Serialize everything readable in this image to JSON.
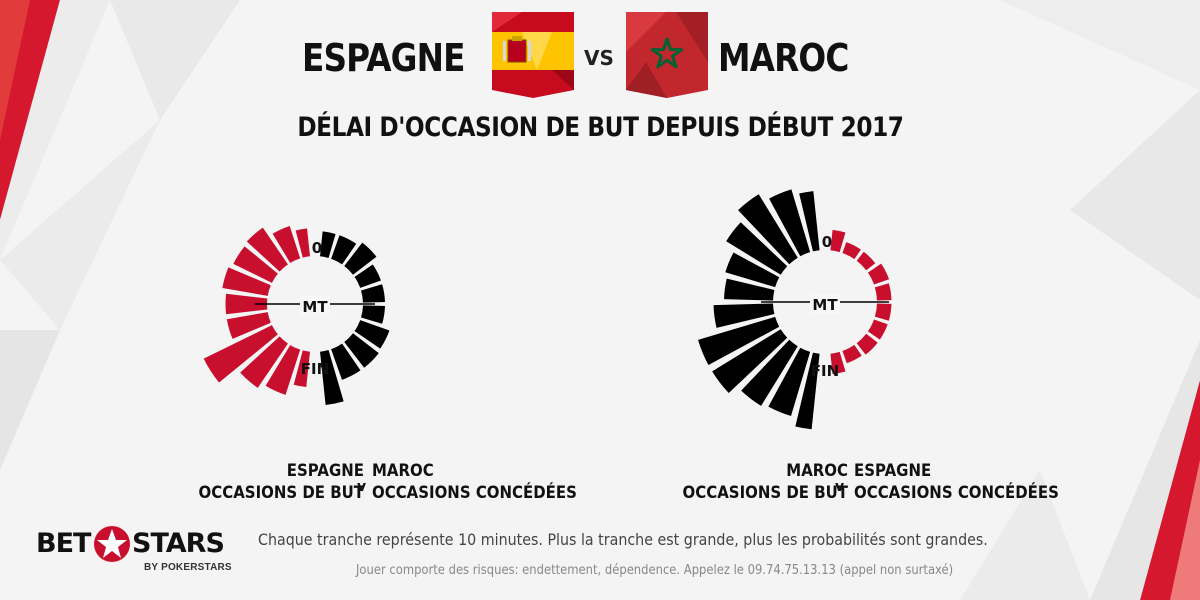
{
  "header": {
    "team_left": "ESPAGNE",
    "vs": "VS",
    "team_right": "MAROC",
    "title": "DÉLAI D'OCCASION DE BUT DEPUIS DÉBUT 2017"
  },
  "colors": {
    "red": "#c8102e",
    "black": "#000000",
    "spain_red": "#c60b1e",
    "spain_yellow": "#ffc400",
    "morocco_red": "#c1272d",
    "morocco_green": "#006233"
  },
  "chart_data": [
    {
      "type": "radial-bar",
      "labels": {
        "start": "0",
        "half": "MT",
        "end": "FIN"
      },
      "slice_minutes": 10,
      "series": [
        {
          "side": "left",
          "color": "red",
          "values": [
            1.0,
            1.2,
            1.55,
            1.5,
            1.6,
            1.45,
            1.45,
            2.6,
            1.85,
            1.65,
            1.25
          ]
        },
        {
          "side": "right",
          "color": "black",
          "values": [
            0.9,
            0.9,
            1.05,
            0.8,
            0.8,
            0.8,
            1.1,
            1.15,
            1.15,
            1.85
          ]
        }
      ],
      "legend": {
        "left_line1": "ESPAGNE",
        "left_line2": "OCCASIONS DE BUT",
        "sep": "v",
        "right_line1": "MAROC",
        "right_line2": "OCCASIONS CONCÉDÉES"
      }
    },
    {
      "type": "radial-bar",
      "labels": {
        "start": "0",
        "half": "MT",
        "end": "FIN"
      },
      "slice_minutes": 10,
      "series": [
        {
          "side": "left",
          "color": "black",
          "values": [
            2.05,
            2.25,
            2.55,
            2.2,
            1.8,
            1.7,
            2.05,
            2.75,
            2.75,
            2.4,
            2.3,
            2.6
          ]
        },
        {
          "side": "right",
          "color": "red",
          "values": [
            0.75,
            0.45,
            0.45,
            0.6,
            0.55,
            0.55,
            0.55,
            0.55,
            0.5,
            0.75
          ]
        }
      ],
      "legend": {
        "left_line1": "MAROC",
        "left_line2": "OCCASIONS DE BUT",
        "sep": "v",
        "right_line1": "ESPAGNE",
        "right_line2": "OCCASIONS CONCÉDÉES"
      }
    }
  ],
  "footer": {
    "note": "Chaque tranche représente 10 minutes. Plus la tranche est grande, plus les probabilités sont grandes.",
    "disclaimer": "Jouer comporte des risques: endettement, dépendence. Appelez le 09.74.75.13.13 (appel non surtaxé)",
    "logo_word1": "BET",
    "logo_word2": "STARS",
    "logo_sub": "BY POKERSTARS"
  }
}
